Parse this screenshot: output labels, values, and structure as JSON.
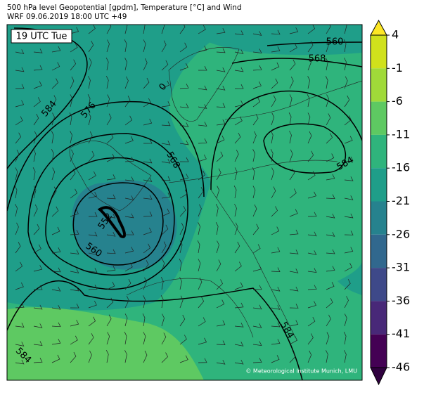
{
  "header": {
    "line1": "500 hPa level Geopotential [gpdm], Temperature [°C] and Wind",
    "line2": "WRF 09.06.2019 18:00 UTC +49"
  },
  "time_label": "19 UTC Tue",
  "contour_labels": [
    "560",
    "568",
    "584",
    "576",
    "0",
    "568",
    "552",
    "560",
    "584",
    "584",
    "584"
  ],
  "colorbar": {
    "ticks": [
      4,
      -1,
      -6,
      -11,
      -16,
      -21,
      -26,
      -31,
      -36,
      -41,
      -46
    ],
    "colors": [
      "#fde725",
      "#d0e11c",
      "#a0da39",
      "#5ec962",
      "#2fb47c",
      "#1f9e89",
      "#26828e",
      "#31688e",
      "#3e4989",
      "#482878",
      "#440154",
      "#30013f"
    ]
  },
  "copyright": "© Meteorological Institute Munich, LMU"
}
